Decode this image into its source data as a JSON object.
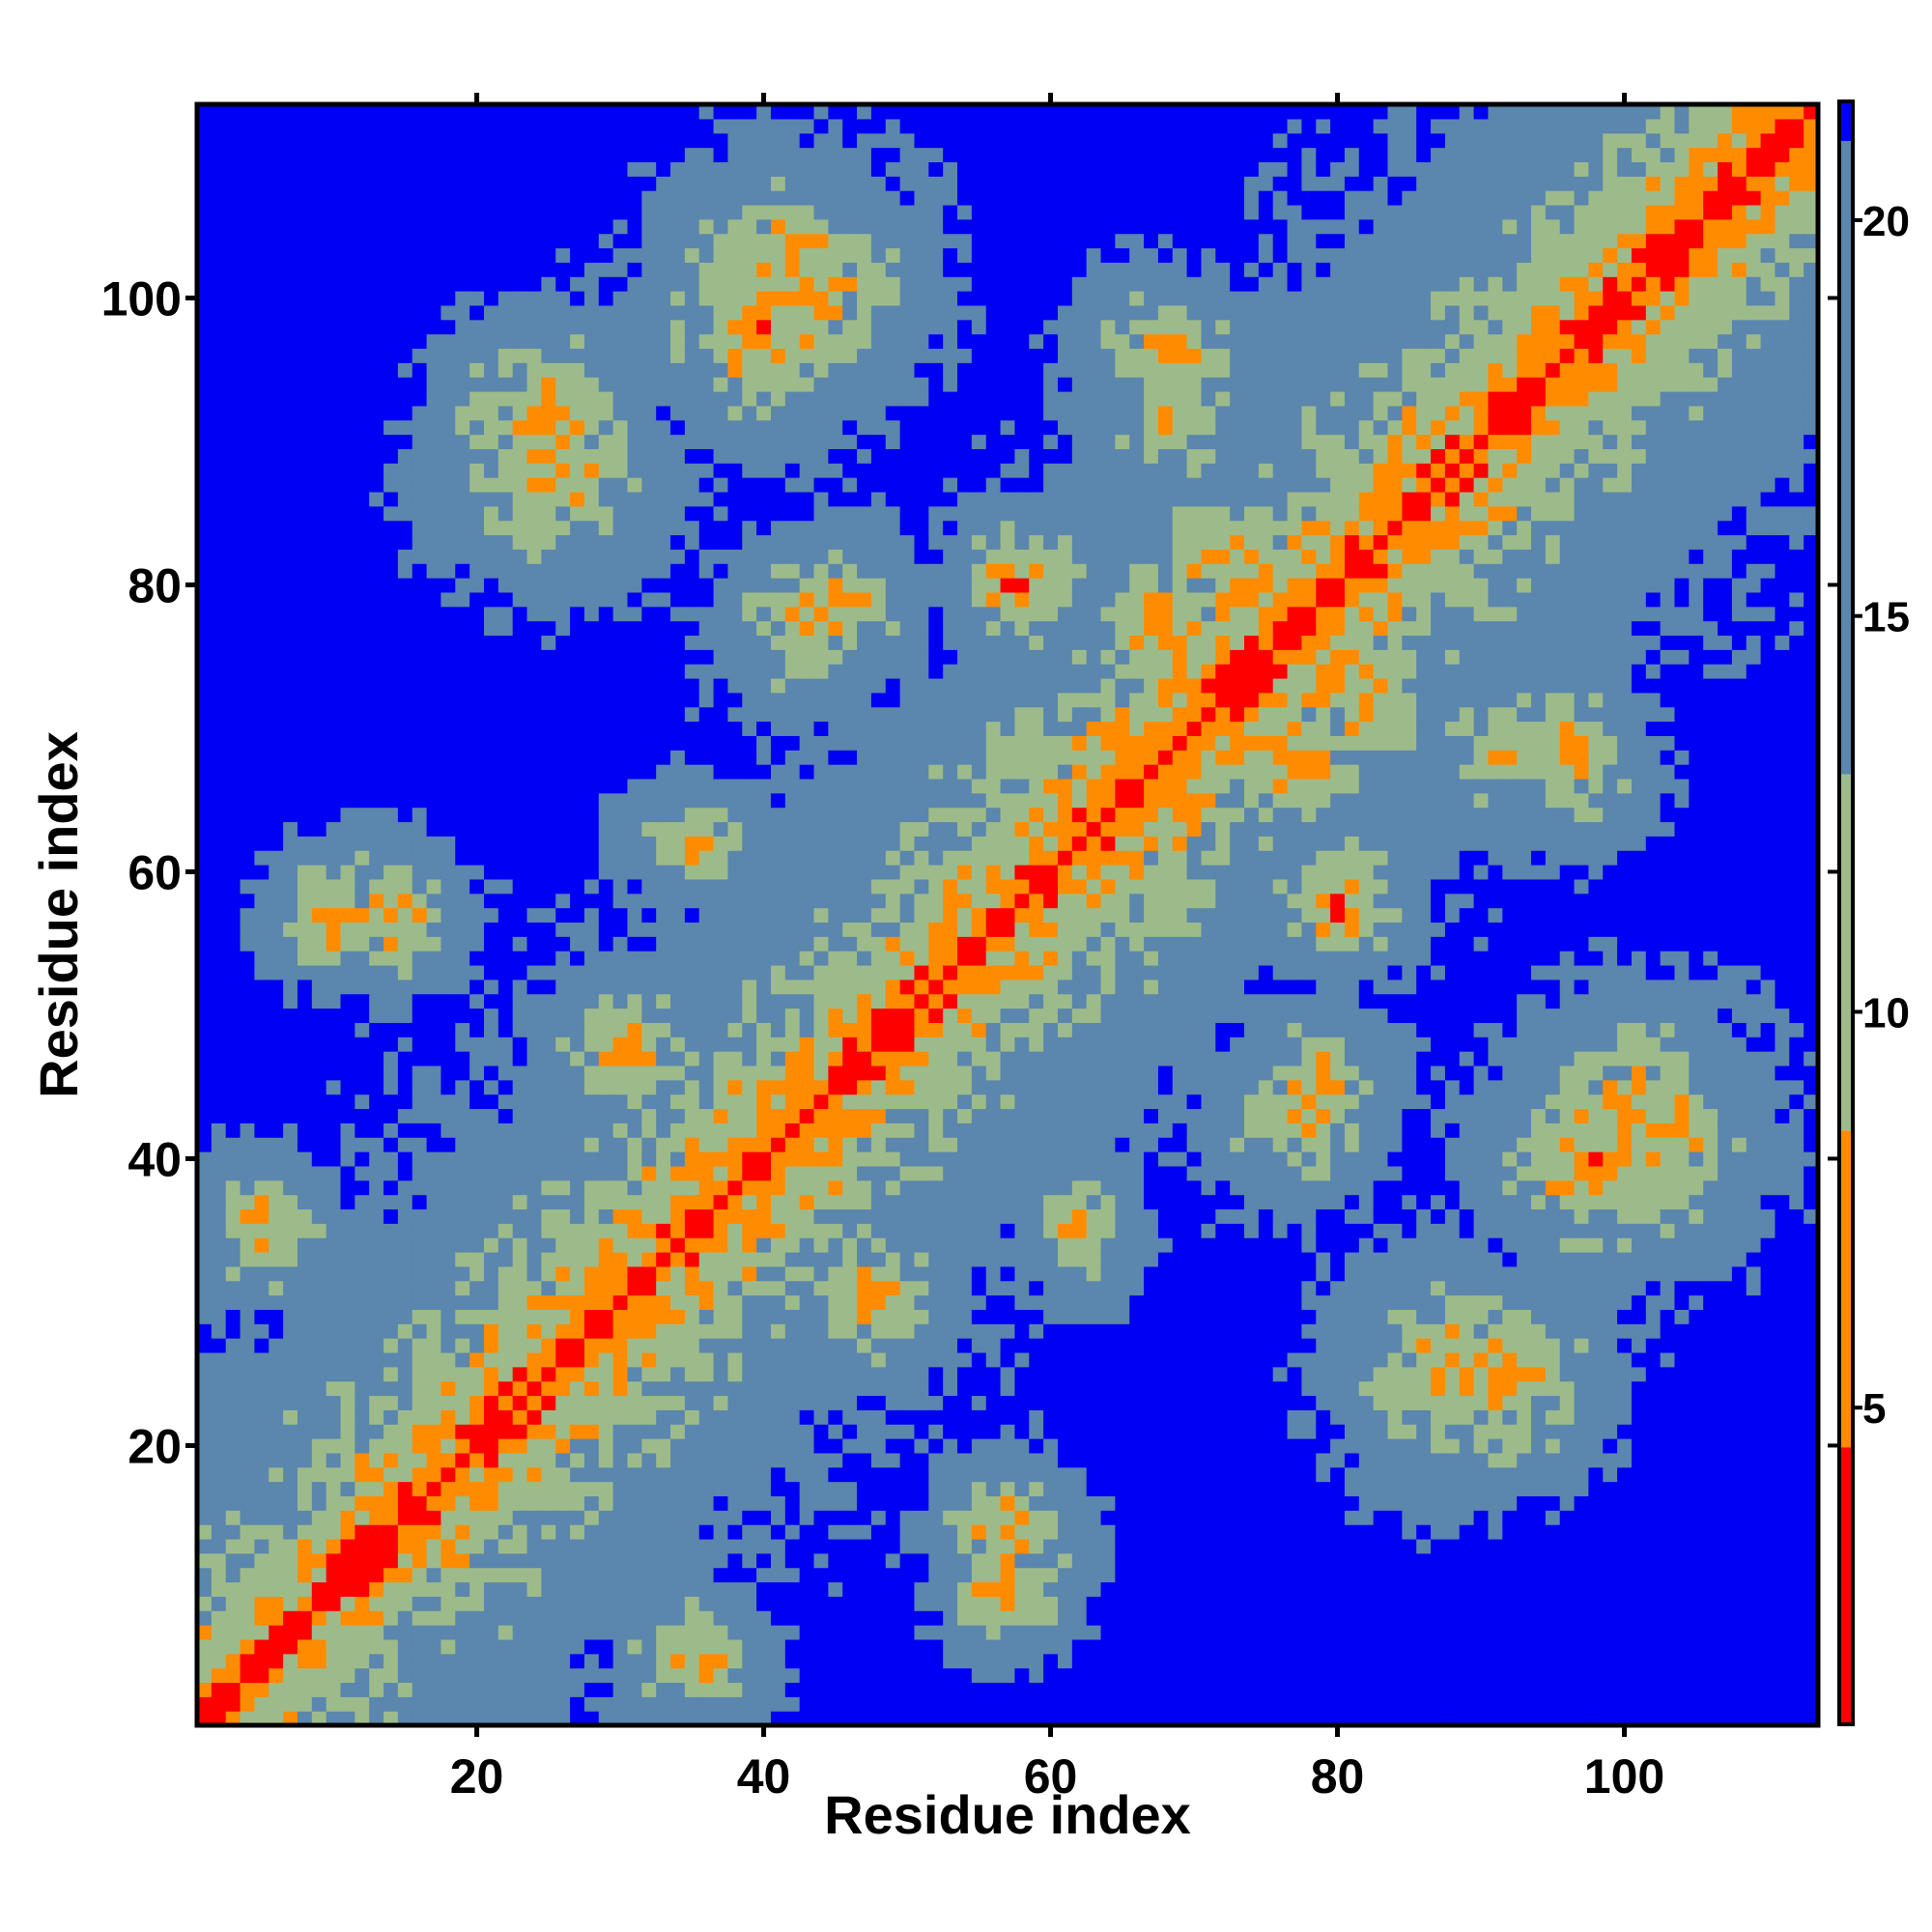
{
  "chart_data": {
    "type": "heatmap",
    "title": "",
    "xlabel": "Residue index",
    "ylabel": "Residue index",
    "n_residues": 113,
    "xlim": [
      1,
      113
    ],
    "ylim": [
      1,
      113
    ],
    "x_ticks": [
      20,
      40,
      60,
      80,
      100
    ],
    "y_ticks": [
      20,
      40,
      60,
      80,
      100
    ],
    "colorbar": {
      "ticks": [
        5,
        10,
        15,
        20
      ],
      "range": [
        1,
        21.5
      ],
      "cutoff": 21,
      "position": "right"
    },
    "colors": {
      "near": "#ff0000",
      "close": "#ff8c00",
      "mid": "#9dbb8a",
      "far": "#5b86ad",
      "beyond_cutoff": "#0000f5"
    },
    "value_unit": "distance",
    "contact_clusters": [
      {
        "i": 14,
        "j": 57,
        "min": 6,
        "spread": 6
      },
      {
        "i": 42,
        "j": 101,
        "min": 6,
        "spread": 10
      },
      {
        "i": 25,
        "j": 92,
        "min": 6,
        "spread": 8
      },
      {
        "i": 10,
        "j": 57,
        "min": 5,
        "spread": 5
      },
      {
        "i": 45,
        "j": 78,
        "min": 7,
        "spread": 7
      },
      {
        "i": 57,
        "j": 80,
        "min": 5,
        "spread": 4
      },
      {
        "i": 68,
        "j": 92,
        "min": 7,
        "spread": 7
      },
      {
        "i": 72,
        "j": 82,
        "min": 6,
        "spread": 6
      },
      {
        "i": 77,
        "j": 68,
        "min": 5,
        "spread": 6
      },
      {
        "i": 80,
        "j": 58,
        "min": 6,
        "spread": 6
      },
      {
        "i": 98,
        "j": 40,
        "min": 6,
        "spread": 9
      },
      {
        "i": 88,
        "j": 25,
        "min": 6,
        "spread": 9
      },
      {
        "i": 77,
        "j": 43,
        "min": 7,
        "spread": 7
      },
      {
        "i": 96,
        "j": 68,
        "min": 7,
        "spread": 7
      },
      {
        "i": 5,
        "j": 35,
        "min": 7,
        "spread": 6
      },
      {
        "i": 48,
        "j": 30,
        "min": 7,
        "spread": 7
      },
      {
        "i": 62,
        "j": 35,
        "min": 8,
        "spread": 6
      }
    ]
  }
}
